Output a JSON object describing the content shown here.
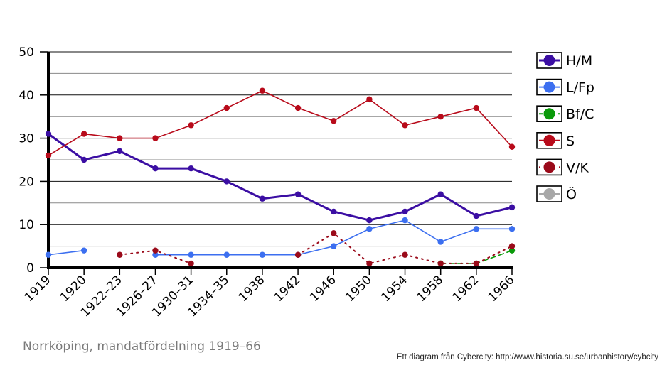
{
  "chart_data": {
    "type": "line",
    "categories": [
      "1919",
      "1920",
      "1922–23",
      "1926–27",
      "1930–31",
      "1934–35",
      "1938",
      "1942",
      "1946",
      "1950",
      "1954",
      "1958",
      "1962",
      "1966"
    ],
    "ylim": [
      0,
      50
    ],
    "yticks": [
      0,
      10,
      20,
      30,
      40,
      50
    ],
    "grid": true,
    "legend_position": "right",
    "series": [
      {
        "name": "H/M",
        "color": "#3b0ea3",
        "style": "solid",
        "width": 3,
        "values": [
          31,
          25,
          27,
          23,
          23,
          20,
          16,
          17,
          13,
          11,
          13,
          17,
          12,
          14
        ]
      },
      {
        "name": "L/Fp",
        "color": "#3c6ff0",
        "style": "solid",
        "width": 1.6,
        "values": [
          3,
          4,
          null,
          3,
          3,
          3,
          3,
          3,
          5,
          9,
          11,
          6,
          9,
          9
        ]
      },
      {
        "name": "Bf/C",
        "color": "#0a9a0a",
        "style": "dashed",
        "width": 1.6,
        "values": [
          null,
          null,
          null,
          null,
          null,
          null,
          null,
          null,
          null,
          null,
          null,
          1,
          1,
          4
        ]
      },
      {
        "name": "S",
        "color": "#b80a1a",
        "style": "solid",
        "width": 1.6,
        "values": [
          26,
          31,
          30,
          30,
          33,
          37,
          41,
          37,
          34,
          39,
          33,
          35,
          37,
          28
        ]
      },
      {
        "name": "V/K",
        "color": "#9a0a1a",
        "style": "dotted",
        "width": 2,
        "values": [
          null,
          null,
          3,
          4,
          1,
          null,
          null,
          3,
          8,
          1,
          3,
          1,
          1,
          5
        ]
      },
      {
        "name": "Ö",
        "color": "#a8a8a8",
        "style": "solid",
        "width": 1.6,
        "values": [
          null,
          null,
          null,
          null,
          null,
          null,
          null,
          null,
          null,
          null,
          null,
          null,
          null,
          null
        ]
      }
    ]
  },
  "caption": "Norrköping, mandatfördelning 1919–66",
  "credit": "Ett diagram från Cybercity: http://www.historia.su.se/urbanhistory/cybcity"
}
